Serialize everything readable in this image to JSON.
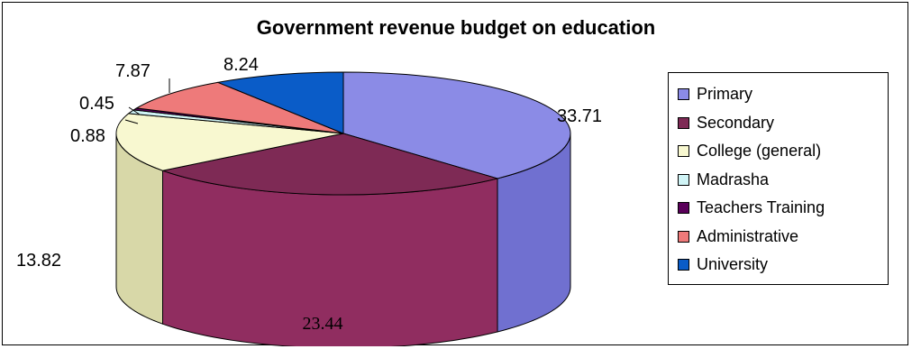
{
  "chart_data": {
    "type": "pie",
    "title": "Government revenue budget on education",
    "slices": [
      {
        "name": "Primary",
        "value": 33.71,
        "label": "33.71",
        "color": "#8b8be6",
        "side_color": "#7070d0"
      },
      {
        "name": "Secondary",
        "value": 23.44,
        "label": "23.44",
        "color": "#7e2a55",
        "side_color": "#902d60"
      },
      {
        "name": "College (general)",
        "value": 13.82,
        "label": "13.82",
        "color": "#f8f8d0",
        "side_color": "#d8d8a8"
      },
      {
        "name": "Madrasha",
        "value": 0.88,
        "label": "0.88",
        "color": "#d0f4f6",
        "side_color": "#a8d6d8"
      },
      {
        "name": "Teachers Training",
        "value": 0.45,
        "label": "0.45",
        "color": "#5a005a",
        "side_color": "#440044"
      },
      {
        "name": "Administrative",
        "value": 7.87,
        "label": "7.87",
        "color": "#ee7a7a",
        "side_color": "#c85c5c"
      },
      {
        "name": "University",
        "value": 8.24,
        "label": "8.24",
        "color": "#0a5cc8",
        "side_color": "#084aa0"
      }
    ],
    "legend_position": "right"
  }
}
